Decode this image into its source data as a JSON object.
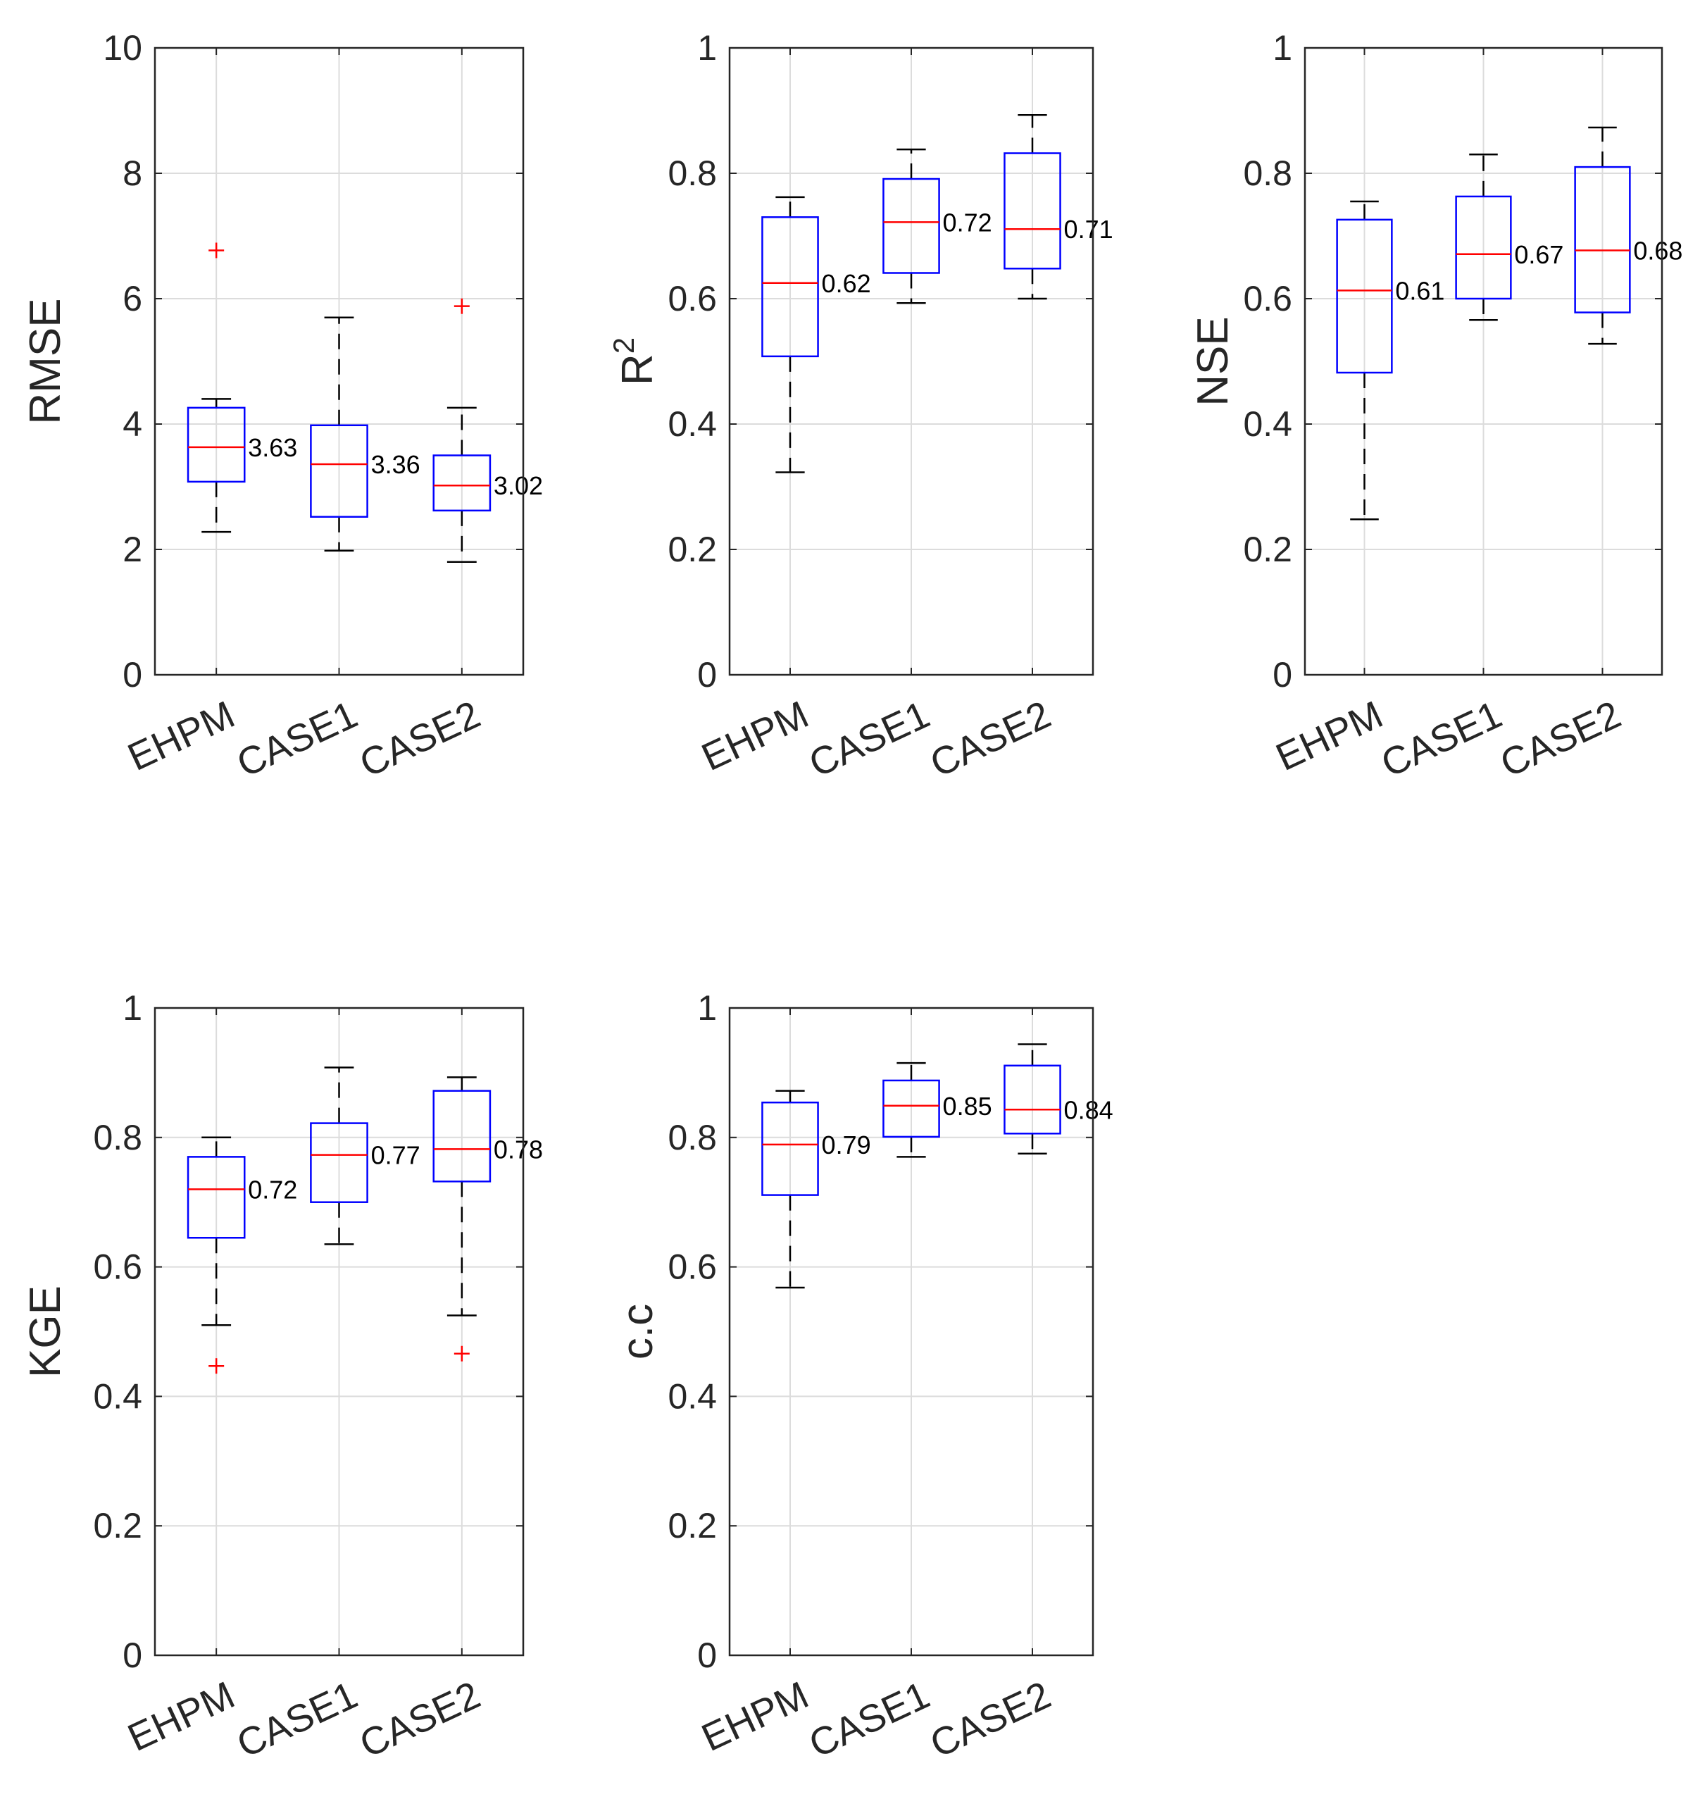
{
  "colors": {
    "box": "#0000ff",
    "median": "#ff0000",
    "outlier": "#ff0000",
    "whisker": "#000000",
    "axes": "#262626",
    "grid": "#dcdcdc"
  },
  "chart_data": [
    {
      "type": "box",
      "ylabel": "RMSE",
      "ylim": [
        0,
        10
      ],
      "yticks": [
        "0",
        "2",
        "4",
        "6",
        "8",
        "10"
      ],
      "grid": true,
      "categories": [
        "EHPM",
        "CASE1",
        "CASE2"
      ],
      "boxes": [
        {
          "whisker_low": 2.28,
          "q1": 3.08,
          "median": 3.63,
          "q3": 4.26,
          "whisker_high": 4.4,
          "outliers": [
            6.77
          ],
          "label": "3.63"
        },
        {
          "whisker_low": 1.98,
          "q1": 2.52,
          "median": 3.36,
          "q3": 3.98,
          "whisker_high": 5.7,
          "outliers": [],
          "label": "3.36"
        },
        {
          "whisker_low": 1.8,
          "q1": 2.62,
          "median": 3.02,
          "q3": 3.5,
          "whisker_high": 4.26,
          "outliers": [
            5.88
          ],
          "label": "3.02"
        }
      ]
    },
    {
      "type": "box",
      "ylabel": "R",
      "ylabel_sup": "2",
      "ylim": [
        0,
        1
      ],
      "yticks": [
        "0",
        "0.2",
        "0.4",
        "0.6",
        "0.8",
        "1"
      ],
      "grid": true,
      "categories": [
        "EHPM",
        "CASE1",
        "CASE2"
      ],
      "boxes": [
        {
          "whisker_low": 0.323,
          "q1": 0.508,
          "median": 0.625,
          "q3": 0.73,
          "whisker_high": 0.762,
          "outliers": [],
          "label": "0.62"
        },
        {
          "whisker_low": 0.593,
          "q1": 0.641,
          "median": 0.722,
          "q3": 0.791,
          "whisker_high": 0.838,
          "outliers": [],
          "label": "0.72"
        },
        {
          "whisker_low": 0.6,
          "q1": 0.648,
          "median": 0.711,
          "q3": 0.832,
          "whisker_high": 0.893,
          "outliers": [],
          "label": "0.71"
        }
      ]
    },
    {
      "type": "box",
      "ylabel": "NSE",
      "ylim": [
        0,
        1
      ],
      "yticks": [
        "0",
        "0.2",
        "0.4",
        "0.6",
        "0.8",
        "1"
      ],
      "grid": true,
      "categories": [
        "EHPM",
        "CASE1",
        "CASE2"
      ],
      "boxes": [
        {
          "whisker_low": 0.248,
          "q1": 0.482,
          "median": 0.613,
          "q3": 0.726,
          "whisker_high": 0.755,
          "outliers": [],
          "label": "0.61"
        },
        {
          "whisker_low": 0.566,
          "q1": 0.6,
          "median": 0.671,
          "q3": 0.763,
          "whisker_high": 0.83,
          "outliers": [],
          "label": "0.67"
        },
        {
          "whisker_low": 0.528,
          "q1": 0.578,
          "median": 0.677,
          "q3": 0.81,
          "whisker_high": 0.873,
          "outliers": [],
          "label": "0.68"
        }
      ]
    },
    {
      "type": "box",
      "ylabel": "KGE",
      "ylim": [
        0,
        1
      ],
      "yticks": [
        "0",
        "0.2",
        "0.4",
        "0.6",
        "0.8",
        "1"
      ],
      "grid": true,
      "categories": [
        "EHPM",
        "CASE1",
        "CASE2"
      ],
      "boxes": [
        {
          "whisker_low": 0.51,
          "q1": 0.645,
          "median": 0.72,
          "q3": 0.77,
          "whisker_high": 0.8,
          "outliers": [
            0.447
          ],
          "label": "0.72"
        },
        {
          "whisker_low": 0.635,
          "q1": 0.7,
          "median": 0.773,
          "q3": 0.822,
          "whisker_high": 0.908,
          "outliers": [],
          "label": "0.77"
        },
        {
          "whisker_low": 0.525,
          "q1": 0.732,
          "median": 0.782,
          "q3": 0.872,
          "whisker_high": 0.893,
          "outliers": [
            0.466
          ],
          "label": "0.78"
        }
      ]
    },
    {
      "type": "box",
      "ylabel": "c.c",
      "ylim": [
        0,
        1
      ],
      "yticks": [
        "0",
        "0.2",
        "0.4",
        "0.6",
        "0.8",
        "1"
      ],
      "grid": true,
      "categories": [
        "EHPM",
        "CASE1",
        "CASE2"
      ],
      "boxes": [
        {
          "whisker_low": 0.568,
          "q1": 0.711,
          "median": 0.789,
          "q3": 0.854,
          "whisker_high": 0.872,
          "outliers": [],
          "label": "0.79"
        },
        {
          "whisker_low": 0.77,
          "q1": 0.801,
          "median": 0.849,
          "q3": 0.888,
          "whisker_high": 0.915,
          "outliers": [],
          "label": "0.85"
        },
        {
          "whisker_low": 0.775,
          "q1": 0.806,
          "median": 0.843,
          "q3": 0.911,
          "whisker_high": 0.944,
          "outliers": [],
          "label": "0.84"
        }
      ]
    }
  ]
}
